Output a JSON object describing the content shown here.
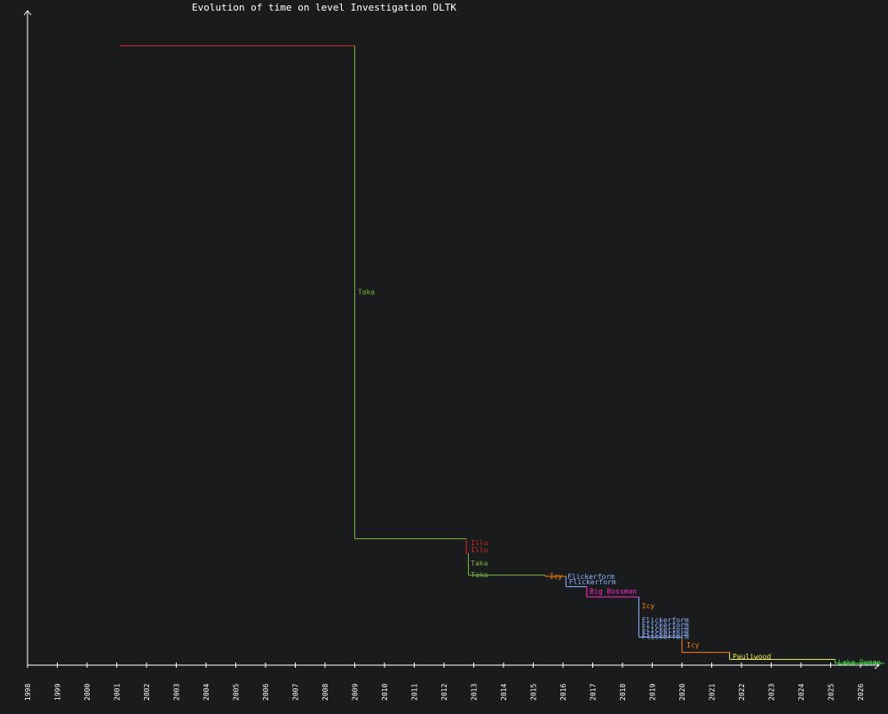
{
  "chart_data": {
    "type": "line",
    "title": "Evolution of time on level Investigation DLTK",
    "xlabel": "",
    "ylabel": "",
    "x_ticks": [
      "1998",
      "1999",
      "2000",
      "2001",
      "2002",
      "2003",
      "2004",
      "2005",
      "2006",
      "2007",
      "2008",
      "2009",
      "2010",
      "2011",
      "2012",
      "2013",
      "2014",
      "2015",
      "2016",
      "2017",
      "2018",
      "2019",
      "2020",
      "2021",
      "2022",
      "2023",
      "2024",
      "2025",
      "2026"
    ],
    "xlim": [
      1998.0,
      2026.8
    ],
    "ylim": [
      0,
      100
    ],
    "grid": false,
    "legend": "none",
    "steps": [
      {
        "x0": 2001.1,
        "x1": 2009.0,
        "y": 97.0,
        "color": "#d62728"
      },
      {
        "x0": 2009.0,
        "x1": 2012.75,
        "y": 19.8,
        "color": "#7cb342"
      },
      {
        "x0": 2012.75,
        "x1": 2012.82,
        "y": 17.5,
        "color": "#d62728"
      },
      {
        "x0": 2012.82,
        "x1": 2015.4,
        "y": 14.1,
        "color": "#7cb342"
      },
      {
        "x0": 2015.4,
        "x1": 2016.1,
        "y": 13.9,
        "color": "#ff7f0e"
      },
      {
        "x0": 2016.1,
        "x1": 2016.8,
        "y": 12.3,
        "color": "#8fb4ff"
      },
      {
        "x0": 2016.8,
        "x1": 2018.55,
        "y": 10.7,
        "color": "#ff29c8"
      },
      {
        "x0": 2018.55,
        "x1": 2020.0,
        "y": 4.4,
        "color": "#8fb4ff"
      },
      {
        "x0": 2020.0,
        "x1": 2021.6,
        "y": 2.0,
        "color": "#ff7f0e"
      },
      {
        "x0": 2021.6,
        "x1": 2025.15,
        "y": 0.9,
        "color": "#e8e84a"
      },
      {
        "x0": 2025.15,
        "x1": 2026.8,
        "y": 0.3,
        "color": "#44d644"
      }
    ],
    "labels": [
      {
        "text": "Taka",
        "x": 2009.1,
        "y": 58.5,
        "color": "#7cb342"
      },
      {
        "text": "Illu",
        "x": 2012.9,
        "y": 19.2,
        "color": "#d62728"
      },
      {
        "text": "Illu",
        "x": 2012.9,
        "y": 18.1,
        "color": "#d62728"
      },
      {
        "text": "Taka",
        "x": 2012.9,
        "y": 16.0,
        "color": "#7cb342"
      },
      {
        "text": "Taka",
        "x": 2012.9,
        "y": 14.2,
        "color": "#7cb342"
      },
      {
        "text": "Icy",
        "x": 2015.55,
        "y": 14.0,
        "color": "#ff7f0e"
      },
      {
        "text": "Flickerform",
        "x": 2016.15,
        "y": 13.9,
        "color": "#8fb4ff"
      },
      {
        "text": "Flickerform",
        "x": 2016.2,
        "y": 13.1,
        "color": "#8fb4ff"
      },
      {
        "text": "Big Bossman",
        "x": 2016.9,
        "y": 11.6,
        "color": "#ff29c8"
      },
      {
        "text": "Icy",
        "x": 2018.65,
        "y": 9.3,
        "color": "#ff7f0e"
      },
      {
        "text": "Flickerform",
        "x": 2018.65,
        "y": 7.1,
        "color": "#8fb4ff"
      },
      {
        "text": "Flickerform",
        "x": 2018.65,
        "y": 6.3,
        "color": "#8fb4ff"
      },
      {
        "text": "Flickerform",
        "x": 2018.65,
        "y": 5.6,
        "color": "#8fb4ff"
      },
      {
        "text": "Flickerform",
        "x": 2018.65,
        "y": 5.0,
        "color": "#8fb4ff"
      },
      {
        "text": "Flickerform",
        "x": 2018.65,
        "y": 4.5,
        "color": "#8fb4ff"
      },
      {
        "text": "Icy",
        "x": 2020.15,
        "y": 3.2,
        "color": "#ff7f0e"
      },
      {
        "text": "Pauliwood",
        "x": 2021.7,
        "y": 1.4,
        "color": "#e8e84a"
      },
      {
        "text": "Lake Demon",
        "x": 2025.25,
        "y": 0.5,
        "color": "#44d644"
      }
    ],
    "colors": {
      "background": "#1a1b1d",
      "axis": "#ffffff",
      "text": "#ffffff"
    }
  }
}
